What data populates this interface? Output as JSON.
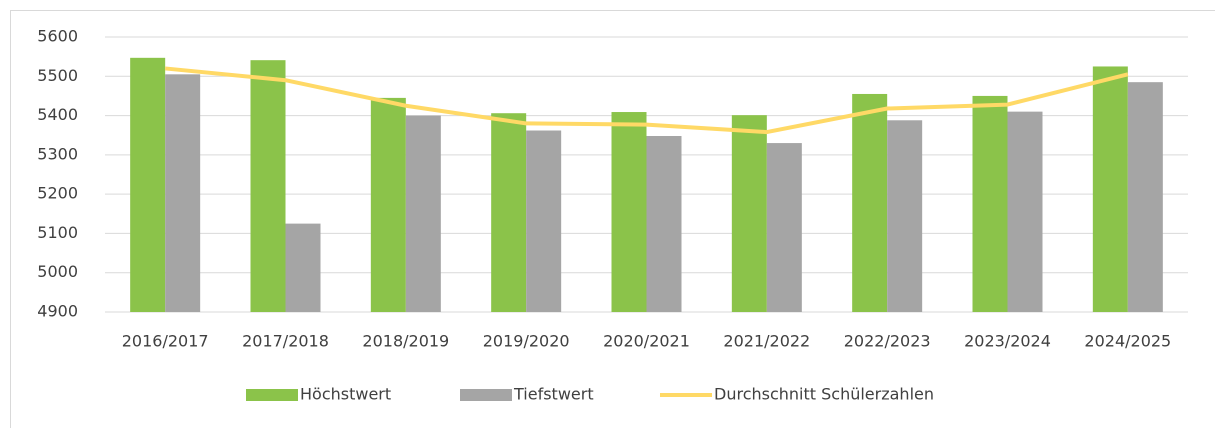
{
  "chart_data": {
    "type": "bar_line",
    "categories": [
      "2016/2017",
      "2017/2018",
      "2018/2019",
      "2019/2020",
      "2020/2021",
      "2021/2022",
      "2022/2023",
      "2023/2024",
      "2024/2025"
    ],
    "series": [
      {
        "name": "Höchstwert",
        "color": "#8bc34a",
        "type": "bar",
        "values": [
          5547,
          5541,
          5445,
          5406,
          5409,
          5401,
          5455,
          5450,
          5525
        ]
      },
      {
        "name": "Tiefstwert",
        "color": "#a5a5a5",
        "type": "bar",
        "values": [
          5505,
          5125,
          5400,
          5362,
          5348,
          5330,
          5388,
          5410,
          5485
        ]
      },
      {
        "name": "Durchschnitt Schülerzahlen",
        "color": "#ffd966",
        "type": "line",
        "values": [
          5520,
          5490,
          5425,
          5380,
          5377,
          5358,
          5418,
          5428,
          5505
        ]
      }
    ],
    "ylim": [
      4900,
      5600
    ],
    "yticks": [
      4900,
      5000,
      5100,
      5200,
      5300,
      5400,
      5500,
      5600
    ],
    "grid": true,
    "legend": "bottom"
  }
}
